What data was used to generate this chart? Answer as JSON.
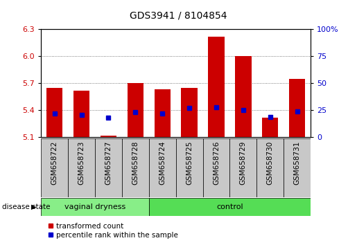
{
  "title": "GDS3941 / 8104854",
  "samples": [
    "GSM658722",
    "GSM658723",
    "GSM658727",
    "GSM658728",
    "GSM658724",
    "GSM658725",
    "GSM658726",
    "GSM658729",
    "GSM658730",
    "GSM658731"
  ],
  "red_values": [
    5.65,
    5.62,
    5.12,
    5.7,
    5.63,
    5.65,
    6.22,
    6.0,
    5.32,
    5.75
  ],
  "blue_values_pct": [
    22,
    21,
    18,
    23,
    22,
    27,
    28,
    25,
    19,
    24
  ],
  "ylim_left": [
    5.1,
    6.3
  ],
  "ylim_right": [
    0,
    100
  ],
  "yticks_left": [
    5.1,
    5.4,
    5.7,
    6.0,
    6.3
  ],
  "yticks_right": [
    0,
    25,
    50,
    75,
    100
  ],
  "red_color": "#cc0000",
  "blue_color": "#0000cc",
  "bar_bottom": 5.1,
  "group1_label": "vaginal dryness",
  "group2_label": "control",
  "group1_color": "#88ee88",
  "group2_color": "#55dd55",
  "legend_red": "transformed count",
  "legend_blue": "percentile rank within the sample",
  "disease_state_label": "disease state",
  "gray_color": "#c8c8c8",
  "dotted_line_color": "#555555",
  "n_group1": 4,
  "n_group2": 6
}
